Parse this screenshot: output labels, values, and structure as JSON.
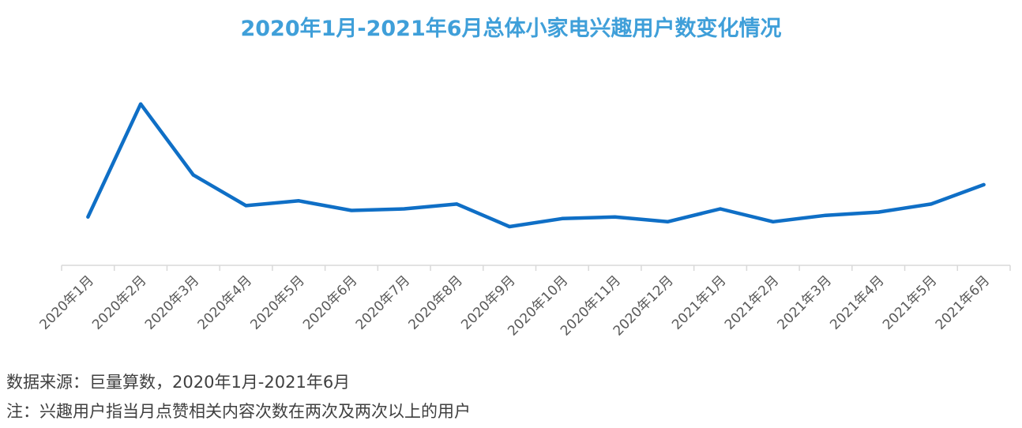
{
  "chart_data": {
    "type": "line",
    "title": "2020年1月-2021年6月总体小家电兴趣用户数变化情况",
    "xlabel": "",
    "ylabel": "",
    "categories": [
      "2020年1月",
      "2020年2月",
      "2020年3月",
      "2020年4月",
      "2020年5月",
      "2020年6月",
      "2020年7月",
      "2020年8月",
      "2020年9月",
      "2020年10月",
      "2020年11月",
      "2020年12月",
      "2021年1月",
      "2021年2月",
      "2021年3月",
      "2021年4月",
      "2021年5月",
      "2021年6月"
    ],
    "series": [
      {
        "values": [
          30,
          100,
          56,
          37,
          40,
          34,
          35,
          38,
          24,
          29,
          30,
          27,
          35,
          27,
          31,
          33,
          38,
          50
        ],
        "color": "#0f6fc6"
      }
    ],
    "ylim": [
      0,
      117
    ],
    "y_axis_visible": false,
    "grid": false,
    "legend": "none"
  },
  "notes": {
    "source": "数据来源：巨量算数，2020年1月-2021年6月",
    "definition": "注：兴趣用户指当月点赞相关内容次数在两次及两次以上的用户"
  }
}
